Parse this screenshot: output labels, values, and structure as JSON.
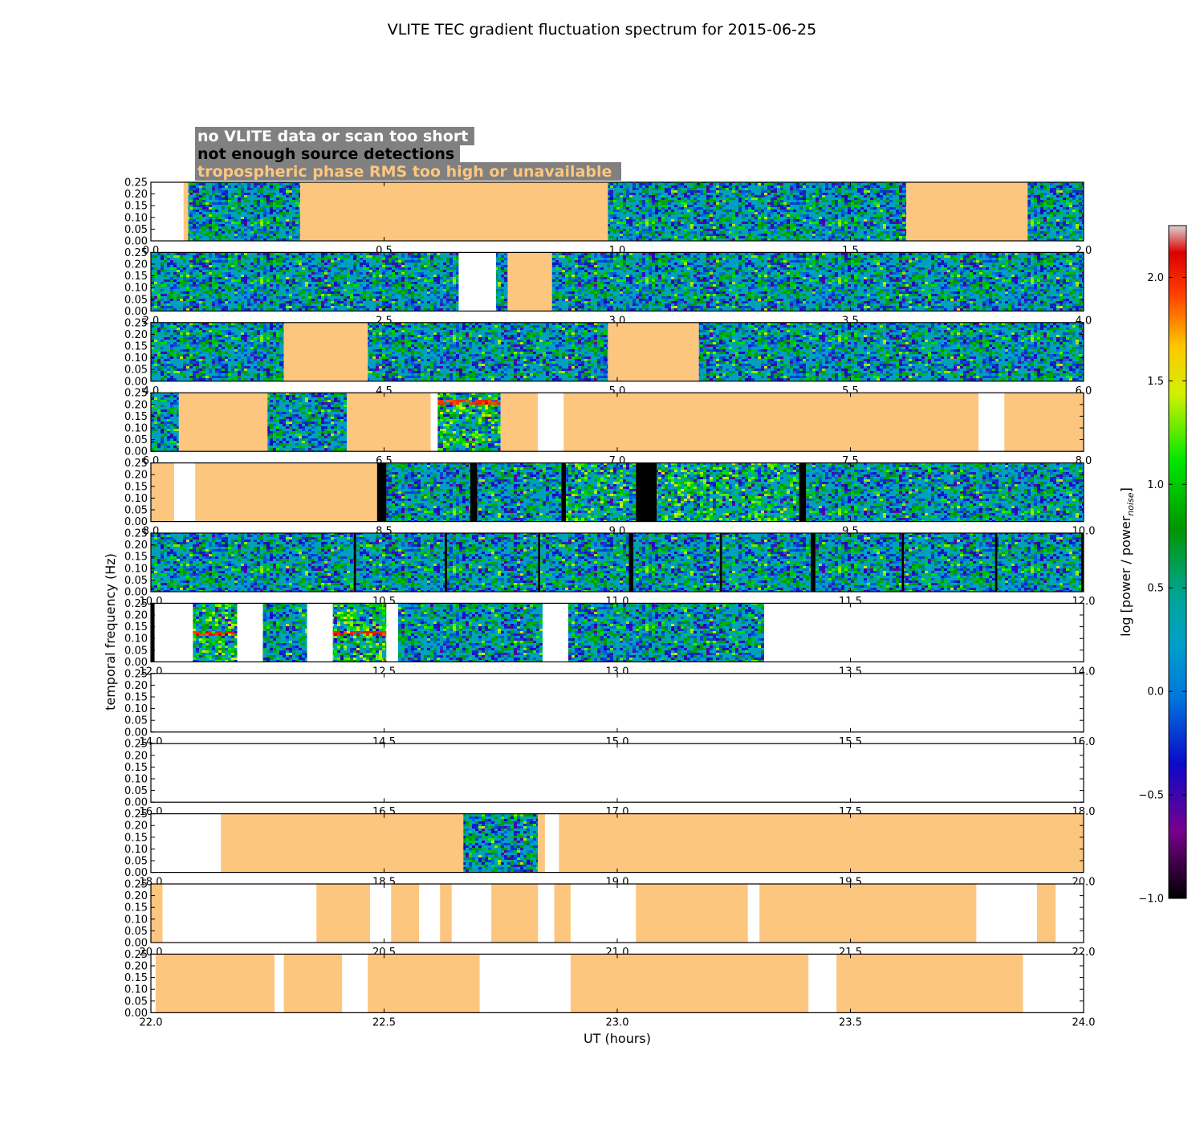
{
  "chart_data": {
    "type": "heatmap",
    "title": "VLITE TEC gradient fluctuation spectrum for 2015-06-25",
    "xlabel": "UT (hours)",
    "ylabel": "temporal frequency (Hz)",
    "colorbar": {
      "label_prefix": "log [power / power",
      "label_sub": "noise",
      "label_suffix": "]",
      "range": [
        -1.0,
        2.25
      ],
      "ticks": [
        "-1.0",
        "-0.5",
        "0.0",
        "0.5",
        "1.0",
        "1.5",
        "2.0"
      ],
      "colormap": "spectral"
    },
    "legend": [
      {
        "text": "no VLITE data or scan too short",
        "color": "#ffffff"
      },
      {
        "text": "not enough source detections",
        "color": "#000000"
      },
      {
        "text": "tropospheric phase RMS too high or unavailable",
        "color": "#fdc67f"
      }
    ],
    "legend_background": "#808080",
    "colors": {
      "tropo": "#fdc67f",
      "nodata": "#ffffff",
      "nodet": "#000000"
    },
    "ylim": [
      0,
      0.25
    ],
    "yticks": [
      "0.00",
      "0.05",
      "0.10",
      "0.15",
      "0.20",
      "0.25"
    ],
    "rows": [
      {
        "range": [
          0,
          2
        ],
        "xticks": [
          "0.0",
          "0.5",
          "1.0",
          "1.5",
          "2.0"
        ],
        "segments": [
          [
            0,
            0.07,
            "nodata"
          ],
          [
            0.07,
            0.08,
            "tropo"
          ],
          [
            0.08,
            0.32,
            "spec"
          ],
          [
            0.32,
            0.98,
            "tropo"
          ],
          [
            0.98,
            1.62,
            "spec"
          ],
          [
            1.62,
            1.88,
            "tropo"
          ],
          [
            1.88,
            2.0,
            "spec"
          ]
        ]
      },
      {
        "range": [
          2,
          4
        ],
        "xticks": [
          "2.0",
          "2.5",
          "3.0",
          "3.5",
          "4.0"
        ],
        "segments": [
          [
            2.0,
            2.66,
            "spec"
          ],
          [
            2.66,
            2.74,
            "nodata"
          ],
          [
            2.74,
            2.765,
            "spec"
          ],
          [
            2.765,
            2.86,
            "tropo"
          ],
          [
            2.86,
            4.0,
            "spec"
          ]
        ]
      },
      {
        "range": [
          4,
          6
        ],
        "xticks": [
          "4.0",
          "4.5",
          "5.0",
          "5.5",
          "6.0"
        ],
        "segments": [
          [
            4.0,
            4.285,
            "spec"
          ],
          [
            4.285,
            4.465,
            "tropo"
          ],
          [
            4.465,
            4.98,
            "spec"
          ],
          [
            4.98,
            5.175,
            "tropo"
          ],
          [
            5.175,
            6.0,
            "spec"
          ]
        ]
      },
      {
        "range": [
          6,
          8
        ],
        "xticks": [
          "6.0",
          "6.5",
          "7.0",
          "7.5",
          "8.0"
        ],
        "segments": [
          [
            6.0,
            6.06,
            "spec"
          ],
          [
            6.06,
            6.25,
            "tropo"
          ],
          [
            6.25,
            6.42,
            "spec"
          ],
          [
            6.42,
            6.6,
            "tropo"
          ],
          [
            6.6,
            6.615,
            "nodata"
          ],
          [
            6.615,
            6.75,
            "spec_hot"
          ],
          [
            6.75,
            6.83,
            "tropo"
          ],
          [
            6.83,
            6.885,
            "nodata"
          ],
          [
            6.885,
            7.775,
            "tropo"
          ],
          [
            7.775,
            7.83,
            "nodata"
          ],
          [
            7.83,
            8.0,
            "tropo"
          ]
        ]
      },
      {
        "range": [
          8,
          10
        ],
        "xticks": [
          "8.0",
          "8.5",
          "9.0",
          "9.5",
          "10.0"
        ],
        "segments": [
          [
            8.0,
            8.05,
            "tropo"
          ],
          [
            8.05,
            8.095,
            "nodata"
          ],
          [
            8.095,
            8.485,
            "tropo"
          ],
          [
            8.485,
            8.505,
            "nodet"
          ],
          [
            8.505,
            8.685,
            "spec"
          ],
          [
            8.685,
            8.7,
            "nodet"
          ],
          [
            8.7,
            8.88,
            "spec"
          ],
          [
            8.88,
            8.89,
            "nodet"
          ],
          [
            8.89,
            9.04,
            "spec_warm"
          ],
          [
            9.04,
            9.085,
            "nodet"
          ],
          [
            9.085,
            9.39,
            "spec_warm"
          ],
          [
            9.39,
            9.405,
            "nodet"
          ],
          [
            9.405,
            10.0,
            "spec"
          ]
        ]
      },
      {
        "range": [
          10,
          12
        ],
        "xticks": [
          "10.0",
          "10.5",
          "11.0",
          "11.5",
          "12.0"
        ],
        "segments": [
          [
            10.0,
            10.435,
            "spec"
          ],
          [
            10.435,
            10.44,
            "nodet"
          ],
          [
            10.44,
            10.63,
            "spec"
          ],
          [
            10.63,
            10.635,
            "nodet"
          ],
          [
            10.635,
            10.83,
            "spec"
          ],
          [
            10.83,
            10.835,
            "nodet"
          ],
          [
            10.835,
            11.025,
            "spec"
          ],
          [
            11.025,
            11.035,
            "nodet"
          ],
          [
            11.035,
            11.22,
            "spec"
          ],
          [
            11.22,
            11.225,
            "nodet"
          ],
          [
            11.225,
            11.415,
            "spec"
          ],
          [
            11.415,
            11.425,
            "nodet"
          ],
          [
            11.425,
            11.61,
            "spec"
          ],
          [
            11.61,
            11.615,
            "nodet"
          ],
          [
            11.615,
            11.81,
            "spec"
          ],
          [
            11.81,
            11.815,
            "nodet"
          ],
          [
            11.815,
            11.995,
            "spec"
          ],
          [
            11.995,
            12.0,
            "nodet"
          ]
        ]
      },
      {
        "range": [
          12,
          14
        ],
        "xticks": [
          "12.0",
          "12.5",
          "13.0",
          "13.5",
          "14.0"
        ],
        "segments": [
          [
            12.0,
            12.008,
            "nodet"
          ],
          [
            12.008,
            12.09,
            "nodata"
          ],
          [
            12.09,
            12.185,
            "spec_hot"
          ],
          [
            12.185,
            12.24,
            "nodata"
          ],
          [
            12.24,
            12.335,
            "spec"
          ],
          [
            12.335,
            12.39,
            "nodata"
          ],
          [
            12.39,
            12.505,
            "spec_hot"
          ],
          [
            12.505,
            12.53,
            "nodata"
          ],
          [
            12.53,
            12.84,
            "spec"
          ],
          [
            12.84,
            12.895,
            "nodata"
          ],
          [
            12.895,
            13.315,
            "spec"
          ],
          [
            13.315,
            14.0,
            "nodata"
          ]
        ]
      },
      {
        "range": [
          14,
          16
        ],
        "xticks": [
          "14.0",
          "14.5",
          "15.0",
          "15.5",
          "16.0"
        ],
        "segments": []
      },
      {
        "range": [
          16,
          18
        ],
        "xticks": [
          "16.0",
          "16.5",
          "17.0",
          "17.5",
          "18.0"
        ],
        "segments": []
      },
      {
        "range": [
          18,
          20
        ],
        "xticks": [
          "18.0",
          "18.5",
          "19.0",
          "19.5",
          "20.0"
        ],
        "segments": [
          [
            18.0,
            18.15,
            "nodata"
          ],
          [
            18.15,
            18.67,
            "tropo"
          ],
          [
            18.67,
            18.83,
            "spec"
          ],
          [
            18.83,
            18.845,
            "tropo"
          ],
          [
            18.845,
            18.875,
            "nodata"
          ],
          [
            18.875,
            20.0,
            "tropo"
          ]
        ]
      },
      {
        "range": [
          20,
          22
        ],
        "xticks": [
          "20.0",
          "20.5",
          "21.0",
          "21.5",
          "22.0"
        ],
        "segments": [
          [
            20.0,
            20.025,
            "tropo"
          ],
          [
            20.355,
            20.47,
            "tropo"
          ],
          [
            20.515,
            20.575,
            "tropo"
          ],
          [
            20.62,
            20.645,
            "tropo"
          ],
          [
            20.73,
            20.83,
            "tropo"
          ],
          [
            20.865,
            20.9,
            "tropo"
          ],
          [
            21.04,
            21.28,
            "tropo"
          ],
          [
            21.305,
            21.77,
            "tropo"
          ],
          [
            21.9,
            21.94,
            "tropo"
          ]
        ]
      },
      {
        "range": [
          22,
          24
        ],
        "xticks": [
          "22.0",
          "22.5",
          "23.0",
          "23.5",
          "24.0"
        ],
        "segments": [
          [
            22.01,
            22.265,
            "tropo"
          ],
          [
            22.285,
            22.41,
            "tropo"
          ],
          [
            22.465,
            22.705,
            "tropo"
          ],
          [
            22.9,
            23.41,
            "tropo"
          ],
          [
            23.47,
            23.87,
            "tropo"
          ]
        ]
      }
    ]
  }
}
